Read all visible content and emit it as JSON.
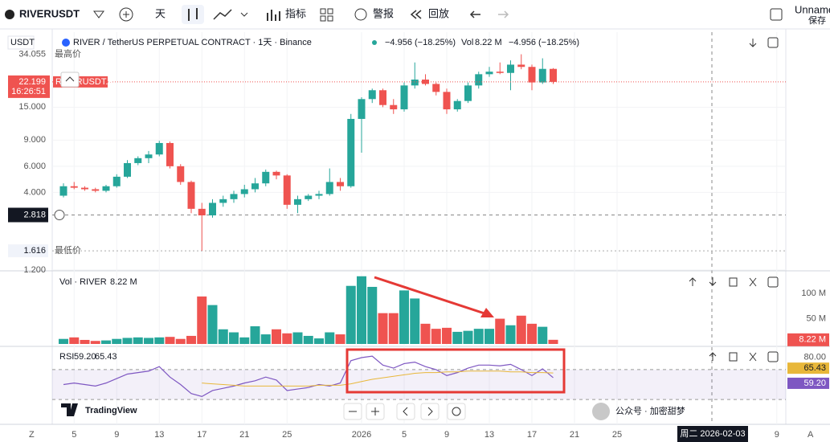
{
  "toolbar": {
    "symbol": "RIVERUSDT",
    "interval": "天",
    "indicators": "指标",
    "alert": "警报",
    "replay": "回放",
    "layout": "Unname",
    "save": "保存"
  },
  "header": {
    "title": "RIVER / TetherUS PERPETUAL CONTRACT · 1天 · Binance",
    "change": "−4.956 (−18.25%)",
    "vol_label": "Vol",
    "symbol_label": "RIVERUSDT.P"
  },
  "chart_data": [
    {
      "type": "candlestick",
      "currency": "USDT",
      "log": true,
      "ylim": [
        1.2,
        48
      ],
      "yticks": [
        {
          "value": 1.2,
          "label": "1.200"
        },
        {
          "value": 4,
          "label": "4.000"
        },
        {
          "value": 6,
          "label": "6.000"
        },
        {
          "value": 9,
          "label": "9.000"
        },
        {
          "value": 15,
          "label": "15.000"
        }
      ],
      "xticks": [
        {
          "value": 1,
          "label": "5"
        },
        {
          "value": 5,
          "label": "9"
        },
        {
          "value": 9,
          "label": "13"
        },
        {
          "value": 13,
          "label": "17"
        },
        {
          "value": 17,
          "label": "21"
        },
        {
          "value": 21,
          "label": "25"
        },
        {
          "value": 28,
          "label": "2026"
        },
        {
          "value": 32,
          "label": "5"
        },
        {
          "value": 36,
          "label": "9"
        },
        {
          "value": 40,
          "label": "13"
        },
        {
          "value": 44,
          "label": "17"
        },
        {
          "value": 48,
          "label": "21"
        },
        {
          "value": 52,
          "label": "25"
        },
        {
          "value": 67,
          "label": "9"
        }
      ],
      "up_color": "#26a69a",
      "down_color": "#ef5350",
      "open": [
        3.8,
        4.4,
        4.3,
        4.2,
        4.1,
        4.4,
        5.1,
        6.3,
        6.8,
        7.2,
        8.6,
        6.0,
        4.7,
        3.1,
        2.8,
        3.4,
        3.6,
        3.9,
        4.2,
        4.6,
        5.5,
        5.2,
        3.3,
        3.6,
        3.8,
        3.9,
        4.7,
        4.4,
        12.5,
        17,
        19.5,
        15.5,
        14.5,
        21,
        23,
        21.5,
        19,
        14.5,
        16.5,
        21,
        25,
        26,
        25.5,
        29,
        28,
        22,
        27.155
      ],
      "high": [
        4.6,
        4.7,
        4.4,
        4.3,
        4.5,
        5.3,
        6.6,
        7.0,
        7.6,
        8.9,
        8.8,
        6.2,
        4.8,
        3.4,
        3.6,
        3.8,
        4.1,
        4.5,
        5.0,
        5.7,
        5.6,
        5.3,
        3.8,
        3.9,
        4.1,
        5.8,
        5.0,
        13.5,
        17.5,
        20,
        20,
        17,
        22,
        30,
        25,
        22,
        20,
        17,
        22,
        26,
        28,
        30,
        31,
        34.055,
        29,
        32,
        27.5
      ],
      "low": [
        3.7,
        4.2,
        4.1,
        4.0,
        4.0,
        4.3,
        5.0,
        6.1,
        6.3,
        7.0,
        5.8,
        4.5,
        2.9,
        1.616,
        2.7,
        3.2,
        3.4,
        3.7,
        4.0,
        4.4,
        4.9,
        3.1,
        2.9,
        3.5,
        3.6,
        3.8,
        4.1,
        4.3,
        7.4,
        16,
        15,
        13.5,
        14,
        20,
        21,
        18,
        13.5,
        14,
        16,
        20,
        24,
        25,
        19.5,
        27,
        19.5,
        21.5,
        21.5
      ],
      "close": [
        4.4,
        4.3,
        4.2,
        4.1,
        4.4,
        5.1,
        6.3,
        6.8,
        7.2,
        8.6,
        6.0,
        4.7,
        3.1,
        2.8,
        3.4,
        3.6,
        3.9,
        4.2,
        4.6,
        5.5,
        5.2,
        3.3,
        3.6,
        3.8,
        3.9,
        4.7,
        4.4,
        12.5,
        17,
        19.5,
        15.5,
        14.5,
        21,
        23,
        21.5,
        19,
        14.5,
        16.5,
        21,
        25,
        26,
        25.5,
        29,
        28,
        22,
        27.155,
        22.199
      ],
      "countdown": "16:26:51",
      "high_label": "最高价",
      "low_label": "最低价",
      "crosshair_price": {
        "value": 2.818,
        "label": "2.818"
      },
      "crosshair_date": "周二 2026-02-03"
    },
    {
      "type": "bar",
      "title": "Vol · RIVER",
      "values": [
        10,
        13,
        8,
        6,
        7,
        10,
        12,
        13,
        12,
        13,
        14,
        10,
        16,
        94,
        77,
        29,
        23,
        13,
        35,
        19,
        29,
        21,
        23,
        16,
        11,
        23,
        19,
        115,
        134,
        113,
        61,
        61,
        106,
        90,
        40,
        30,
        32,
        24,
        26,
        30,
        30,
        50,
        37,
        56,
        40,
        34,
        8.22
      ],
      "last_label": "8.22 M",
      "ylim": [
        0,
        140
      ],
      "yticks": [
        {
          "value": 50,
          "label": "50 M"
        },
        {
          "value": 100,
          "label": "100 M"
        }
      ]
    },
    {
      "type": "line",
      "title": "RSI",
      "ylim": [
        0,
        100
      ],
      "yticks": [
        {
          "value": 80,
          "label": "80.00"
        }
      ],
      "bands": [
        70,
        30
      ],
      "series": [
        {
          "name": "RSI",
          "color": "#7e57c2",
          "last_label": "59.20",
          "values": [
            50,
            52,
            50,
            48,
            52,
            58,
            64,
            66,
            68,
            74,
            60,
            50,
            38,
            34,
            42,
            45,
            48,
            52,
            55,
            60,
            56,
            42,
            44,
            46,
            50,
            48,
            52,
            82,
            86,
            88,
            76,
            72,
            78,
            80,
            74,
            70,
            62,
            66,
            72,
            76,
            76,
            75,
            77,
            70,
            62,
            71,
            59.2
          ]
        },
        {
          "color": "#e8b73a",
          "last_label": "65.43",
          "values": [
            null,
            null,
            null,
            null,
            null,
            null,
            null,
            null,
            null,
            null,
            null,
            null,
            null,
            52,
            51,
            50,
            49,
            48,
            48,
            48,
            48,
            48,
            48,
            48,
            49,
            49,
            49,
            51,
            54,
            57,
            59,
            61,
            63,
            65,
            66,
            66,
            67,
            67,
            68,
            68,
            68,
            68,
            67,
            67,
            66,
            66,
            65.43
          ]
        }
      ]
    }
  ],
  "logo": "TradingView",
  "watermark": "公众号 · 加密甜梦",
  "corner_left": "Z",
  "corner_right": "A"
}
